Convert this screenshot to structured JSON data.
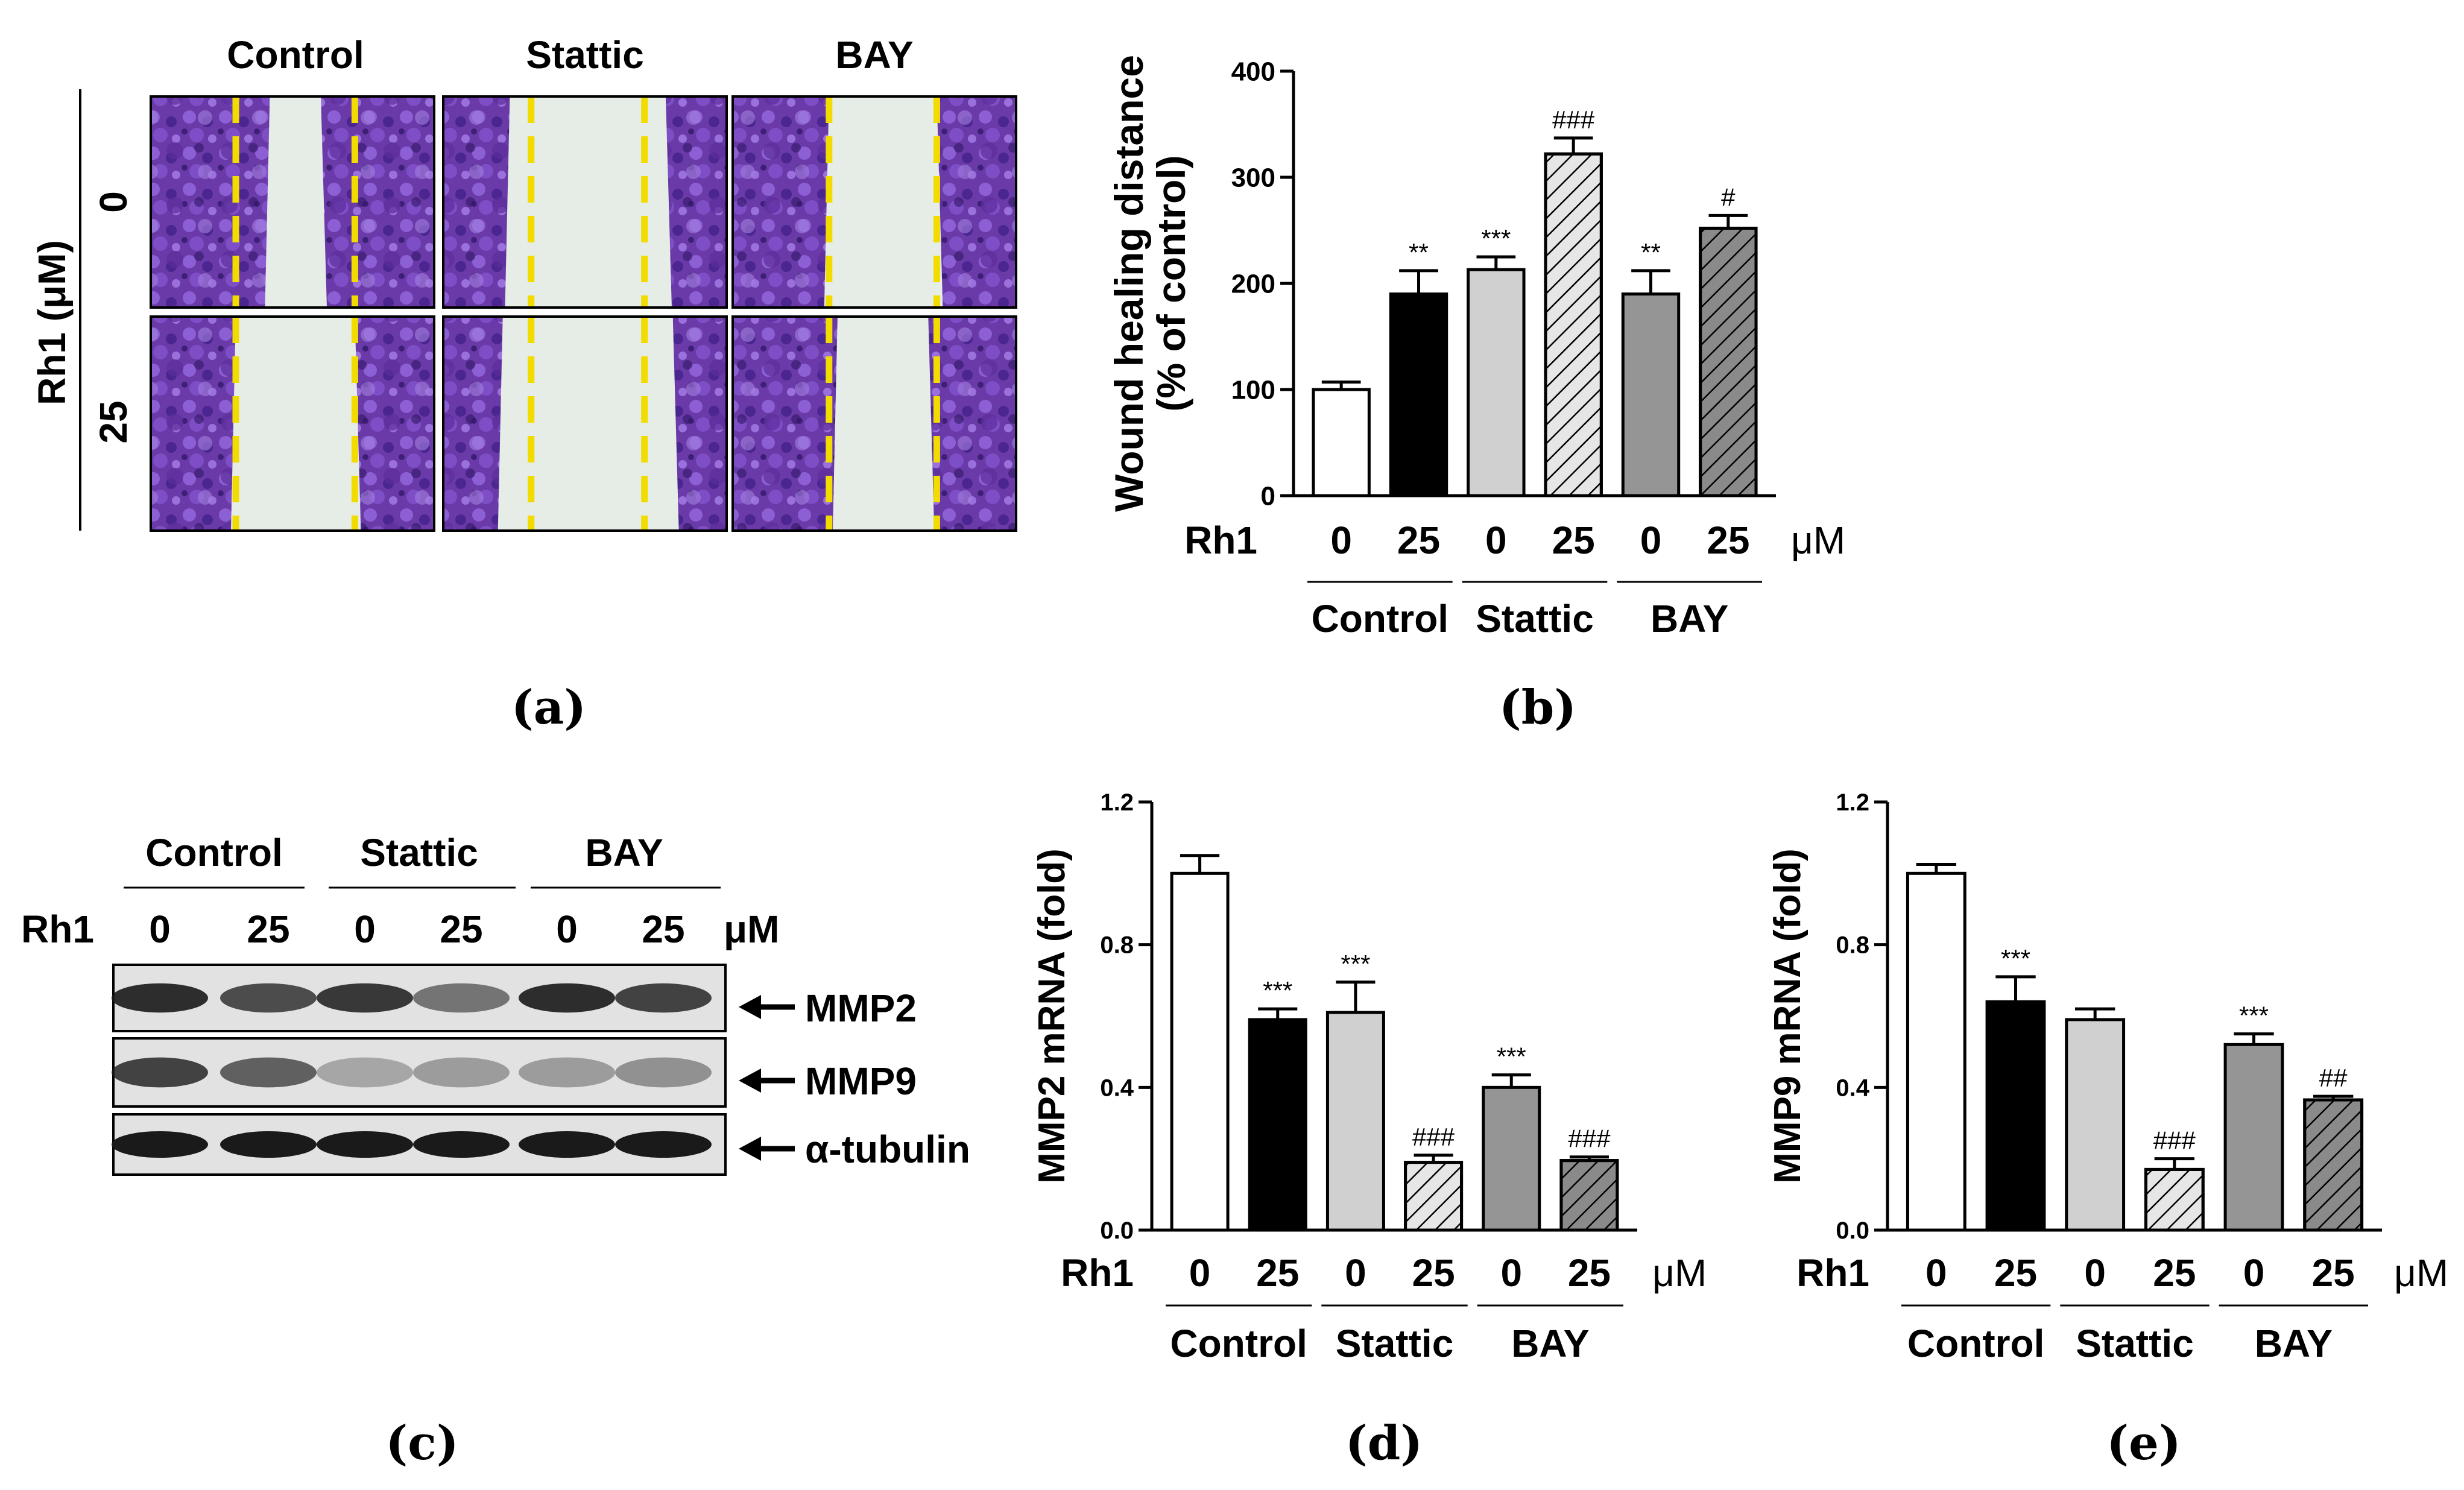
{
  "panel_labels": {
    "a": "(a)",
    "b": "(b)",
    "c": "(c)",
    "d": "(d)",
    "e": "(e)"
  },
  "conditions": [
    "Control",
    "Stattic",
    "BAY"
  ],
  "rh1_label": "Rh1",
  "rh1_doses": [
    "0",
    "25",
    "0",
    "25",
    "0",
    "25"
  ],
  "unit_label": "μM",
  "panel_a": {
    "column_titles": [
      "Control",
      "Stattic",
      "BAY"
    ],
    "row_labels": [
      "0",
      "25"
    ],
    "side_label": "Rh1 (μM)"
  },
  "western": {
    "column_titles": [
      "Control",
      "Stattic",
      "BAY"
    ],
    "dose_label": "Rh1",
    "doses": [
      "0",
      "25",
      "0",
      "25",
      "0",
      "25"
    ],
    "unit": "μM",
    "bands": [
      "MMP2",
      "MMP9",
      "α-tubulin"
    ],
    "colors": {
      "band": "#1a1a1a",
      "membrane": "#e2e2e2"
    }
  },
  "bar_colors": [
    "#ffffff",
    "#000000",
    "#d0d0d0",
    "#e6e6e6",
    "#959595",
    "#8a8a8a"
  ],
  "bar_hatched": [
    false,
    false,
    false,
    true,
    false,
    true
  ],
  "colors": {
    "well_purple": "#6a3aa8",
    "well_dark": "#3e1f78",
    "scratch": "#e6ece6",
    "dash": "#f2dc00",
    "axis": "#000000"
  },
  "chart_data": [
    {
      "id": "b",
      "type": "bar",
      "categories": [
        "Control 0",
        "Control 25",
        "Stattic 0",
        "Stattic 25",
        "BAY 0",
        "BAY 25"
      ],
      "values": [
        100,
        190,
        213,
        322,
        190,
        252
      ],
      "errors": [
        7,
        22,
        12,
        15,
        22,
        12
      ],
      "annotations": [
        "",
        "**",
        "***",
        "###",
        "**",
        "#"
      ],
      "ylabel_line1": "Wound healing distance",
      "ylabel_line2": "(% of control)",
      "ylim": [
        0,
        400
      ],
      "yticks": [
        "0",
        "100",
        "200",
        "300",
        "400"
      ],
      "ytick_values": [
        0,
        100,
        200,
        300,
        400
      ],
      "xlabel_row": "Rh1",
      "unit": "μM",
      "groups": [
        "Control",
        "Stattic",
        "BAY"
      ]
    },
    {
      "id": "d",
      "type": "bar",
      "categories": [
        "Control 0",
        "Control 25",
        "Stattic 0",
        "Stattic 25",
        "BAY 0",
        "BAY 25"
      ],
      "values": [
        1.0,
        0.59,
        0.61,
        0.19,
        0.4,
        0.195
      ],
      "errors": [
        0.05,
        0.03,
        0.085,
        0.02,
        0.035,
        0.01
      ],
      "annotations": [
        "",
        "***",
        "***",
        "###",
        "***",
        "###"
      ],
      "ylabel": "MMP2 mRNA (fold)",
      "ylim": [
        0,
        1.2
      ],
      "yticks": [
        "0.0",
        "0.4",
        "0.8",
        "1.2"
      ],
      "ytick_values": [
        0,
        0.4,
        0.8,
        1.2
      ],
      "xlabel_row": "Rh1",
      "unit": "μM",
      "groups": [
        "Control",
        "Stattic",
        "BAY"
      ]
    },
    {
      "id": "e",
      "type": "bar",
      "categories": [
        "Control 0",
        "Control 25",
        "Stattic 0",
        "Stattic 25",
        "BAY 0",
        "BAY 25"
      ],
      "values": [
        1.0,
        0.64,
        0.59,
        0.17,
        0.52,
        0.365
      ],
      "errors": [
        0.025,
        0.07,
        0.03,
        0.03,
        0.03,
        0.01
      ],
      "annotations": [
        "",
        "***",
        "",
        "###",
        "***",
        "##"
      ],
      "ylabel": "MMP9 mRNA (fold)",
      "ylim": [
        0,
        1.2
      ],
      "yticks": [
        "0.0",
        "0.4",
        "0.8",
        "1.2"
      ],
      "ytick_values": [
        0,
        0.4,
        0.8,
        1.2
      ],
      "xlabel_row": "Rh1",
      "unit": "μM",
      "groups": [
        "Control",
        "Stattic",
        "BAY"
      ]
    }
  ]
}
